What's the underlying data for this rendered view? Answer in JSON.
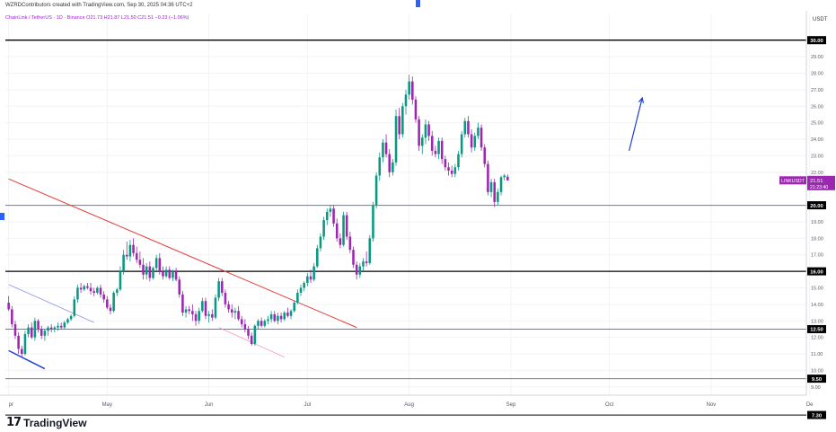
{
  "header": {
    "attribution": "WZRDContributors created with TradingView.com, Sep 30, 2025 04:36 UTC+2",
    "symbol_line": "ChainLink / TetherUS · 1D · Binance  O21.73  H21.87  L21.50  C21.51  −0.23 (−1.06%)"
  },
  "currency_label": "USDT",
  "logo_text": "TradingView",
  "colors": {
    "up": "#089981",
    "down": "#9c27b0",
    "red_trendline": "#e53935",
    "blue_line": "#1e3fd6",
    "marker": "#9c27b0",
    "arrow": "#1e3fd6"
  },
  "chart_data": {
    "type": "candlestick",
    "ylim": [
      8.5,
      30.8
    ],
    "y_ticks": [
      {
        "v": 9.0,
        "label": "9.00"
      },
      {
        "v": 10.0,
        "label": "10.00"
      },
      {
        "v": 11.0,
        "label": "11.00"
      },
      {
        "v": 12.0,
        "label": "12.00"
      },
      {
        "v": 13.0,
        "label": "13.00"
      },
      {
        "v": 14.0,
        "label": "14.00"
      },
      {
        "v": 15.0,
        "label": "15.00"
      },
      {
        "v": 17.0,
        "label": "17.00"
      },
      {
        "v": 18.0,
        "label": "18.00"
      },
      {
        "v": 19.0,
        "label": "19.00"
      },
      {
        "v": 20.0,
        "label": "20.00"
      },
      {
        "v": 22.0,
        "label": "22.00"
      },
      {
        "v": 23.0,
        "label": "23.00"
      },
      {
        "v": 24.0,
        "label": "24.00"
      },
      {
        "v": 25.0,
        "label": "25.00"
      },
      {
        "v": 26.0,
        "label": "26.00"
      },
      {
        "v": 27.0,
        "label": "27.00"
      },
      {
        "v": 28.0,
        "label": "28.00"
      },
      {
        "v": 29.0,
        "label": "29.00"
      }
    ],
    "x_labels": [
      {
        "label": "pr",
        "bar": 0
      },
      {
        "label": "May",
        "bar": 30
      },
      {
        "label": "Jun",
        "bar": 61
      },
      {
        "label": "Jul",
        "bar": 91
      },
      {
        "label": "Aug",
        "bar": 122
      },
      {
        "label": "Sep",
        "bar": 153
      },
      {
        "label": "Oct",
        "bar": 183
      },
      {
        "label": "Nov",
        "bar": 214
      },
      {
        "label": "De",
        "bar": 244
      }
    ],
    "x_range_bars": [
      -1,
      243
    ],
    "horizontal_levels": [
      {
        "v": 30.0,
        "label": "30.00",
        "color": "#000000",
        "width": 1.3
      },
      {
        "v": 20.0,
        "label": "20.00",
        "color": "#787b86",
        "width": 1
      },
      {
        "v": 16.0,
        "label": "16.00",
        "color": "#000000",
        "width": 1.3
      },
      {
        "v": 12.5,
        "label": "12.50",
        "color": "#787b86",
        "width": 1
      },
      {
        "v": 9.5,
        "label": "9.50",
        "color": "#787b86",
        "width": 1
      },
      {
        "v": 7.3,
        "label": "7.30",
        "color": "#000000",
        "width": 1
      }
    ],
    "last_price": {
      "label": "LINKUSDT",
      "value": "21.51",
      "countdown": "21:23:40",
      "v": 21.51
    },
    "trendlines": [
      {
        "from": [
          0,
          21.6
        ],
        "to": [
          106,
          12.6
        ],
        "color": "#e53935",
        "width": 1
      },
      {
        "from": [
          0,
          15.2
        ],
        "to": [
          26,
          12.9
        ],
        "color": "#7b7fe0",
        "width": 0.7
      },
      {
        "from": [
          0,
          11.2
        ],
        "to": [
          11,
          10.1
        ],
        "color": "#1e3fd6",
        "width": 1.5
      },
      {
        "from": [
          64,
          12.6
        ],
        "to": [
          84,
          10.8
        ],
        "color": "#f48fb1",
        "width": 0.7
      }
    ],
    "arrow": {
      "from": [
        189,
        23.3
      ],
      "to": [
        193,
        26.5
      ]
    },
    "candles": [
      {
        "o": 14.1,
        "h": 14.5,
        "l": 13.6,
        "c": 13.7
      },
      {
        "o": 13.7,
        "h": 13.9,
        "l": 12.6,
        "c": 12.8
      },
      {
        "o": 12.8,
        "h": 13.0,
        "l": 11.9,
        "c": 12.1
      },
      {
        "o": 12.1,
        "h": 12.3,
        "l": 11.0,
        "c": 11.3
      },
      {
        "o": 11.3,
        "h": 11.5,
        "l": 10.8,
        "c": 11.0
      },
      {
        "o": 11.0,
        "h": 12.4,
        "l": 10.9,
        "c": 12.2
      },
      {
        "o": 12.2,
        "h": 12.8,
        "l": 12.0,
        "c": 12.6
      },
      {
        "o": 12.6,
        "h": 12.9,
        "l": 11.9,
        "c": 12.0
      },
      {
        "o": 12.0,
        "h": 13.2,
        "l": 11.8,
        "c": 13.0
      },
      {
        "o": 13.0,
        "h": 13.1,
        "l": 12.3,
        "c": 12.5
      },
      {
        "o": 12.5,
        "h": 12.7,
        "l": 11.9,
        "c": 12.1
      },
      {
        "o": 12.1,
        "h": 12.5,
        "l": 11.8,
        "c": 12.4
      },
      {
        "o": 12.4,
        "h": 12.7,
        "l": 12.1,
        "c": 12.6
      },
      {
        "o": 12.6,
        "h": 12.8,
        "l": 12.3,
        "c": 12.5
      },
      {
        "o": 12.5,
        "h": 12.7,
        "l": 12.3,
        "c": 12.6
      },
      {
        "o": 12.6,
        "h": 12.9,
        "l": 12.4,
        "c": 12.7
      },
      {
        "o": 12.7,
        "h": 12.9,
        "l": 12.5,
        "c": 12.6
      },
      {
        "o": 12.6,
        "h": 13.0,
        "l": 12.5,
        "c": 12.9
      },
      {
        "o": 12.9,
        "h": 13.2,
        "l": 12.8,
        "c": 13.1
      },
      {
        "o": 13.1,
        "h": 13.4,
        "l": 13.0,
        "c": 13.3
      },
      {
        "o": 13.3,
        "h": 14.5,
        "l": 13.2,
        "c": 14.3
      },
      {
        "o": 14.3,
        "h": 15.2,
        "l": 14.1,
        "c": 15.0
      },
      {
        "o": 15.0,
        "h": 15.3,
        "l": 14.7,
        "c": 14.9
      },
      {
        "o": 14.9,
        "h": 15.2,
        "l": 14.8,
        "c": 15.1
      },
      {
        "o": 15.1,
        "h": 15.3,
        "l": 14.9,
        "c": 15.0
      },
      {
        "o": 15.0,
        "h": 15.3,
        "l": 14.6,
        "c": 14.8
      },
      {
        "o": 14.8,
        "h": 15.0,
        "l": 14.5,
        "c": 14.7
      },
      {
        "o": 14.7,
        "h": 15.1,
        "l": 14.6,
        "c": 15.0
      },
      {
        "o": 15.0,
        "h": 15.2,
        "l": 14.4,
        "c": 14.6
      },
      {
        "o": 14.6,
        "h": 14.8,
        "l": 14.1,
        "c": 14.3
      },
      {
        "o": 14.3,
        "h": 14.5,
        "l": 13.7,
        "c": 13.8
      },
      {
        "o": 13.8,
        "h": 14.0,
        "l": 13.4,
        "c": 13.6
      },
      {
        "o": 13.6,
        "h": 14.8,
        "l": 13.5,
        "c": 14.7
      },
      {
        "o": 14.7,
        "h": 15.0,
        "l": 14.5,
        "c": 14.9
      },
      {
        "o": 14.9,
        "h": 16.3,
        "l": 14.8,
        "c": 16.0
      },
      {
        "o": 16.0,
        "h": 17.3,
        "l": 15.8,
        "c": 17.0
      },
      {
        "o": 17.0,
        "h": 17.8,
        "l": 16.7,
        "c": 16.9
      },
      {
        "o": 16.9,
        "h": 17.9,
        "l": 16.6,
        "c": 17.6
      },
      {
        "o": 17.6,
        "h": 18.0,
        "l": 16.9,
        "c": 17.1
      },
      {
        "o": 17.1,
        "h": 17.5,
        "l": 16.5,
        "c": 16.7
      },
      {
        "o": 16.7,
        "h": 17.2,
        "l": 16.2,
        "c": 16.4
      },
      {
        "o": 16.4,
        "h": 16.8,
        "l": 15.5,
        "c": 15.8
      },
      {
        "o": 15.8,
        "h": 16.5,
        "l": 15.5,
        "c": 16.3
      },
      {
        "o": 16.3,
        "h": 16.6,
        "l": 15.4,
        "c": 15.6
      },
      {
        "o": 15.6,
        "h": 16.3,
        "l": 15.5,
        "c": 16.2
      },
      {
        "o": 16.2,
        "h": 17.0,
        "l": 16.0,
        "c": 16.8
      },
      {
        "o": 16.8,
        "h": 17.1,
        "l": 15.8,
        "c": 16.0
      },
      {
        "o": 16.0,
        "h": 16.3,
        "l": 15.5,
        "c": 15.7
      },
      {
        "o": 15.7,
        "h": 16.3,
        "l": 15.6,
        "c": 16.1
      },
      {
        "o": 16.1,
        "h": 16.3,
        "l": 15.5,
        "c": 15.6
      },
      {
        "o": 15.6,
        "h": 16.1,
        "l": 15.4,
        "c": 16.0
      },
      {
        "o": 16.0,
        "h": 16.2,
        "l": 15.4,
        "c": 15.5
      },
      {
        "o": 15.5,
        "h": 15.7,
        "l": 14.4,
        "c": 14.6
      },
      {
        "o": 14.6,
        "h": 14.8,
        "l": 13.3,
        "c": 13.5
      },
      {
        "o": 13.5,
        "h": 13.9,
        "l": 13.2,
        "c": 13.7
      },
      {
        "o": 13.7,
        "h": 13.9,
        "l": 13.4,
        "c": 13.6
      },
      {
        "o": 13.6,
        "h": 14.0,
        "l": 13.0,
        "c": 13.4
      },
      {
        "o": 13.4,
        "h": 13.6,
        "l": 12.7,
        "c": 13.0
      },
      {
        "o": 13.0,
        "h": 13.8,
        "l": 12.8,
        "c": 13.6
      },
      {
        "o": 13.6,
        "h": 14.4,
        "l": 13.5,
        "c": 14.2
      },
      {
        "o": 14.2,
        "h": 14.4,
        "l": 13.1,
        "c": 13.3
      },
      {
        "o": 13.3,
        "h": 13.6,
        "l": 12.9,
        "c": 13.4
      },
      {
        "o": 13.4,
        "h": 13.7,
        "l": 13.0,
        "c": 13.2
      },
      {
        "o": 13.2,
        "h": 14.6,
        "l": 13.1,
        "c": 14.4
      },
      {
        "o": 14.4,
        "h": 15.6,
        "l": 14.2,
        "c": 15.4
      },
      {
        "o": 15.4,
        "h": 15.6,
        "l": 14.5,
        "c": 14.7
      },
      {
        "o": 14.7,
        "h": 14.9,
        "l": 13.8,
        "c": 14.0
      },
      {
        "o": 14.0,
        "h": 14.2,
        "l": 13.5,
        "c": 13.7
      },
      {
        "o": 13.7,
        "h": 14.0,
        "l": 13.2,
        "c": 13.5
      },
      {
        "o": 13.5,
        "h": 13.8,
        "l": 13.1,
        "c": 13.6
      },
      {
        "o": 13.6,
        "h": 13.9,
        "l": 13.0,
        "c": 13.1
      },
      {
        "o": 13.1,
        "h": 13.3,
        "l": 12.6,
        "c": 12.8
      },
      {
        "o": 12.8,
        "h": 13.1,
        "l": 12.3,
        "c": 12.5
      },
      {
        "o": 12.5,
        "h": 12.7,
        "l": 11.9,
        "c": 12.1
      },
      {
        "o": 12.1,
        "h": 12.3,
        "l": 11.5,
        "c": 11.6
      },
      {
        "o": 11.6,
        "h": 12.8,
        "l": 11.5,
        "c": 12.7
      },
      {
        "o": 12.7,
        "h": 13.1,
        "l": 12.5,
        "c": 13.0
      },
      {
        "o": 13.0,
        "h": 13.2,
        "l": 12.6,
        "c": 12.7
      },
      {
        "o": 12.7,
        "h": 13.1,
        "l": 12.6,
        "c": 13.0
      },
      {
        "o": 13.0,
        "h": 13.3,
        "l": 12.8,
        "c": 13.1
      },
      {
        "o": 13.1,
        "h": 13.6,
        "l": 12.9,
        "c": 13.4
      },
      {
        "o": 13.4,
        "h": 13.6,
        "l": 12.9,
        "c": 13.0
      },
      {
        "o": 13.0,
        "h": 13.5,
        "l": 12.8,
        "c": 13.3
      },
      {
        "o": 13.3,
        "h": 13.5,
        "l": 12.9,
        "c": 13.1
      },
      {
        "o": 13.1,
        "h": 13.6,
        "l": 13.0,
        "c": 13.5
      },
      {
        "o": 13.5,
        "h": 13.8,
        "l": 13.2,
        "c": 13.3
      },
      {
        "o": 13.3,
        "h": 13.7,
        "l": 13.1,
        "c": 13.6
      },
      {
        "o": 13.6,
        "h": 14.2,
        "l": 13.5,
        "c": 14.1
      },
      {
        "o": 14.1,
        "h": 14.9,
        "l": 14.0,
        "c": 14.7
      },
      {
        "o": 14.7,
        "h": 15.2,
        "l": 14.5,
        "c": 15.0
      },
      {
        "o": 15.0,
        "h": 15.4,
        "l": 14.8,
        "c": 15.3
      },
      {
        "o": 15.3,
        "h": 15.9,
        "l": 15.1,
        "c": 15.7
      },
      {
        "o": 15.7,
        "h": 16.1,
        "l": 15.3,
        "c": 15.5
      },
      {
        "o": 15.5,
        "h": 16.5,
        "l": 15.4,
        "c": 16.3
      },
      {
        "o": 16.3,
        "h": 17.6,
        "l": 16.2,
        "c": 17.4
      },
      {
        "o": 17.4,
        "h": 18.3,
        "l": 17.2,
        "c": 18.1
      },
      {
        "o": 18.1,
        "h": 19.3,
        "l": 17.9,
        "c": 19.1
      },
      {
        "o": 19.1,
        "h": 19.8,
        "l": 18.8,
        "c": 19.6
      },
      {
        "o": 19.6,
        "h": 20.0,
        "l": 19.3,
        "c": 19.8
      },
      {
        "o": 19.8,
        "h": 20.0,
        "l": 18.7,
        "c": 18.9
      },
      {
        "o": 18.9,
        "h": 19.2,
        "l": 17.8,
        "c": 18.0
      },
      {
        "o": 18.0,
        "h": 18.3,
        "l": 17.4,
        "c": 17.6
      },
      {
        "o": 17.6,
        "h": 19.6,
        "l": 17.5,
        "c": 19.4
      },
      {
        "o": 19.4,
        "h": 19.6,
        "l": 17.9,
        "c": 18.1
      },
      {
        "o": 18.1,
        "h": 18.4,
        "l": 17.1,
        "c": 17.3
      },
      {
        "o": 17.3,
        "h": 17.5,
        "l": 16.2,
        "c": 16.4
      },
      {
        "o": 16.4,
        "h": 16.6,
        "l": 15.5,
        "c": 15.8
      },
      {
        "o": 15.8,
        "h": 16.5,
        "l": 15.6,
        "c": 16.3
      },
      {
        "o": 16.3,
        "h": 16.8,
        "l": 16.0,
        "c": 16.6
      },
      {
        "o": 16.6,
        "h": 17.2,
        "l": 16.3,
        "c": 16.5
      },
      {
        "o": 16.5,
        "h": 18.2,
        "l": 16.4,
        "c": 18.0
      },
      {
        "o": 18.0,
        "h": 20.2,
        "l": 17.8,
        "c": 20.0
      },
      {
        "o": 20.0,
        "h": 22.0,
        "l": 19.8,
        "c": 21.8
      },
      {
        "o": 21.8,
        "h": 23.2,
        "l": 21.5,
        "c": 22.9
      },
      {
        "o": 22.9,
        "h": 24.0,
        "l": 22.6,
        "c": 23.8
      },
      {
        "o": 23.8,
        "h": 24.3,
        "l": 22.9,
        "c": 23.1
      },
      {
        "o": 23.1,
        "h": 23.4,
        "l": 21.7,
        "c": 22.0
      },
      {
        "o": 22.0,
        "h": 22.8,
        "l": 21.8,
        "c": 22.6
      },
      {
        "o": 22.6,
        "h": 25.8,
        "l": 22.4,
        "c": 25.4
      },
      {
        "o": 25.4,
        "h": 25.9,
        "l": 24.0,
        "c": 24.3
      },
      {
        "o": 24.3,
        "h": 26.2,
        "l": 24.1,
        "c": 26.0
      },
      {
        "o": 26.0,
        "h": 27.0,
        "l": 25.5,
        "c": 26.7
      },
      {
        "o": 26.7,
        "h": 27.9,
        "l": 26.4,
        "c": 27.5
      },
      {
        "o": 27.5,
        "h": 27.8,
        "l": 26.1,
        "c": 26.4
      },
      {
        "o": 26.4,
        "h": 26.6,
        "l": 25.0,
        "c": 25.2
      },
      {
        "o": 25.2,
        "h": 25.4,
        "l": 23.3,
        "c": 23.6
      },
      {
        "o": 23.6,
        "h": 24.3,
        "l": 23.1,
        "c": 24.1
      },
      {
        "o": 24.1,
        "h": 25.2,
        "l": 23.7,
        "c": 24.9
      },
      {
        "o": 24.9,
        "h": 25.1,
        "l": 23.9,
        "c": 24.2
      },
      {
        "o": 24.2,
        "h": 24.5,
        "l": 23.0,
        "c": 23.3
      },
      {
        "o": 23.3,
        "h": 23.6,
        "l": 22.9,
        "c": 23.1
      },
      {
        "o": 23.1,
        "h": 24.1,
        "l": 22.8,
        "c": 23.9
      },
      {
        "o": 23.9,
        "h": 24.1,
        "l": 22.5,
        "c": 22.8
      },
      {
        "o": 22.8,
        "h": 23.0,
        "l": 22.1,
        "c": 22.3
      },
      {
        "o": 22.3,
        "h": 22.6,
        "l": 21.8,
        "c": 22.1
      },
      {
        "o": 22.1,
        "h": 22.4,
        "l": 21.7,
        "c": 21.9
      },
      {
        "o": 21.9,
        "h": 22.5,
        "l": 21.7,
        "c": 22.3
      },
      {
        "o": 22.3,
        "h": 23.3,
        "l": 22.1,
        "c": 23.1
      },
      {
        "o": 23.1,
        "h": 24.5,
        "l": 22.9,
        "c": 24.3
      },
      {
        "o": 24.3,
        "h": 25.3,
        "l": 24.1,
        "c": 25.1
      },
      {
        "o": 25.1,
        "h": 25.4,
        "l": 24.1,
        "c": 24.3
      },
      {
        "o": 24.3,
        "h": 24.6,
        "l": 23.2,
        "c": 23.5
      },
      {
        "o": 23.5,
        "h": 24.4,
        "l": 23.3,
        "c": 24.2
      },
      {
        "o": 24.2,
        "h": 25.0,
        "l": 24.0,
        "c": 24.7
      },
      {
        "o": 24.7,
        "h": 24.9,
        "l": 23.3,
        "c": 23.5
      },
      {
        "o": 23.5,
        "h": 23.7,
        "l": 22.3,
        "c": 22.5
      },
      {
        "o": 22.5,
        "h": 22.7,
        "l": 20.6,
        "c": 20.8
      },
      {
        "o": 20.8,
        "h": 21.6,
        "l": 20.5,
        "c": 21.4
      },
      {
        "o": 21.4,
        "h": 21.6,
        "l": 19.9,
        "c": 20.2
      },
      {
        "o": 20.2,
        "h": 21.0,
        "l": 20.0,
        "c": 20.8
      },
      {
        "o": 20.8,
        "h": 21.8,
        "l": 20.6,
        "c": 21.7
      },
      {
        "o": 21.7,
        "h": 21.9,
        "l": 21.5,
        "c": 21.8
      },
      {
        "o": 21.73,
        "h": 21.87,
        "l": 21.5,
        "c": 21.51
      }
    ]
  }
}
